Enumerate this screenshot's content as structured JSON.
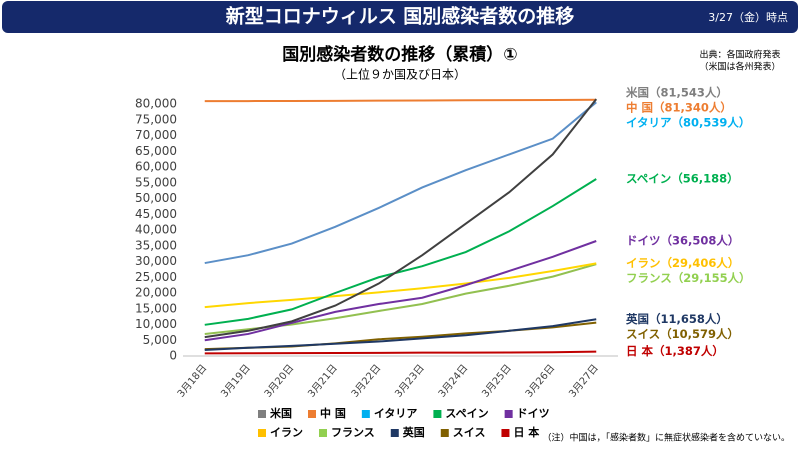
{
  "header": {
    "title": "新型コロナウィルス 国別感染者数の推移",
    "date": "3/27（金）時点"
  },
  "chart_data": {
    "type": "line",
    "title": "国別感染者数の推移（累積）①",
    "subtitle": "（上位９か国及び日本）",
    "source": [
      "出典：各国政府発表",
      "（米国は各州発表）"
    ],
    "note": "（注）中国は，「感染者数」に無症状感染者を含めていない。",
    "categories": [
      "3月18日",
      "3月19日",
      "3月20日",
      "3月21日",
      "3月22日",
      "3月23日",
      "3月24日",
      "3月25日",
      "3月26日",
      "3月27日"
    ],
    "ylim": [
      0,
      80000
    ],
    "yticks": [
      0,
      {
        "value": 5000,
        "label": "5,000"
      },
      {
        "value": 10000,
        "label": "10,000"
      },
      {
        "value": 15000,
        "label": "15,000"
      },
      {
        "value": 20000,
        "label": "20,000"
      },
      {
        "value": 25000,
        "label": "25,000"
      },
      {
        "value": 30000,
        "label": "30,000"
      },
      {
        "value": 35000,
        "label": "35,000"
      },
      {
        "value": 40000,
        "label": "40,000"
      },
      {
        "value": 45000,
        "label": "45,000"
      },
      {
        "value": 50000,
        "label": "50,000"
      },
      {
        "value": 55000,
        "label": "55,000"
      },
      {
        "value": 60000,
        "label": "60,000"
      },
      {
        "value": 65000,
        "label": "65,000"
      },
      {
        "value": 70000,
        "label": "70,000"
      },
      {
        "value": 75000,
        "label": "75,000"
      },
      {
        "value": 80000,
        "label": "80,000"
      }
    ],
    "grid": false,
    "series": [
      {
        "name": "米国",
        "color": "#404040",
        "legend_color": "#7f7f7f",
        "end_label": "米国（81,543人）",
        "label_color": "#7f7f7f",
        "values": [
          6000,
          8000,
          11000,
          16000,
          23000,
          32000,
          42000,
          52000,
          64000,
          81543
        ]
      },
      {
        "name": "中 国",
        "color": "#ed7d31",
        "legend_color": "#ed7d31",
        "end_label": "中 国（81,340人）",
        "label_color": "#ed7d31",
        "values": [
          80894,
          80928,
          80967,
          81008,
          81054,
          81093,
          81171,
          81218,
          81285,
          81340
        ]
      },
      {
        "name": "イタリア",
        "color": "#5b8fc7",
        "legend_color": "#00b0f0",
        "end_label": "イタリア（80,539人）",
        "label_color": "#00b0f0",
        "values": [
          29500,
          32000,
          35700,
          41000,
          47000,
          53500,
          59000,
          64000,
          69000,
          80539
        ]
      },
      {
        "name": "スペイン",
        "color": "#00b050",
        "legend_color": "#00b050",
        "end_label": "スペイン（56,188）",
        "label_color": "#00b050",
        "values": [
          9900,
          11800,
          14800,
          20000,
          25000,
          28500,
          33000,
          39600,
          47600,
          56188
        ]
      },
      {
        "name": "ドイツ",
        "color": "#7030a0",
        "legend_color": "#7030a0",
        "end_label": "ドイツ（36,508人）",
        "label_color": "#7030a0",
        "values": [
          5000,
          7000,
          10500,
          14000,
          16500,
          18500,
          22500,
          27000,
          31500,
          36508
        ]
      },
      {
        "name": "イラン",
        "color": "#ffd700",
        "legend_color": "#ffc000",
        "end_label": "イラン（29,406人）",
        "label_color": "#ffc000",
        "values": [
          15500,
          16800,
          17800,
          19000,
          20200,
          21500,
          23000,
          24800,
          27000,
          29406
        ]
      },
      {
        "name": "フランス",
        "color": "#92c050",
        "legend_color": "#92d050",
        "end_label": "フランス（29,155人）",
        "label_color": "#92d050",
        "values": [
          7000,
          8500,
          10000,
          12000,
          14300,
          16500,
          19800,
          22300,
          25200,
          29155
        ]
      },
      {
        "name": "英国",
        "color": "#1f3864",
        "legend_color": "#1f3864",
        "end_label": "英国（11,658人）",
        "label_color": "#1f3864",
        "values": [
          1900,
          2600,
          3200,
          3900,
          4600,
          5600,
          6600,
          8000,
          9500,
          11658
        ]
      },
      {
        "name": "スイス",
        "color": "#806000",
        "legend_color": "#806000",
        "end_label": "スイス（10,579人）",
        "label_color": "#806000",
        "values": [
          2200,
          2600,
          3000,
          4000,
          5300,
          6100,
          7200,
          8000,
          9100,
          10579
        ]
      },
      {
        "name": "日 本",
        "color": "#c00000",
        "legend_color": "#c00000",
        "end_label": "日 本（1,387人）",
        "label_color": "#c00000",
        "values": [
          829,
          873,
          914,
          950,
          1007,
          1054,
          1089,
          1128,
          1193,
          1387
        ]
      }
    ]
  }
}
